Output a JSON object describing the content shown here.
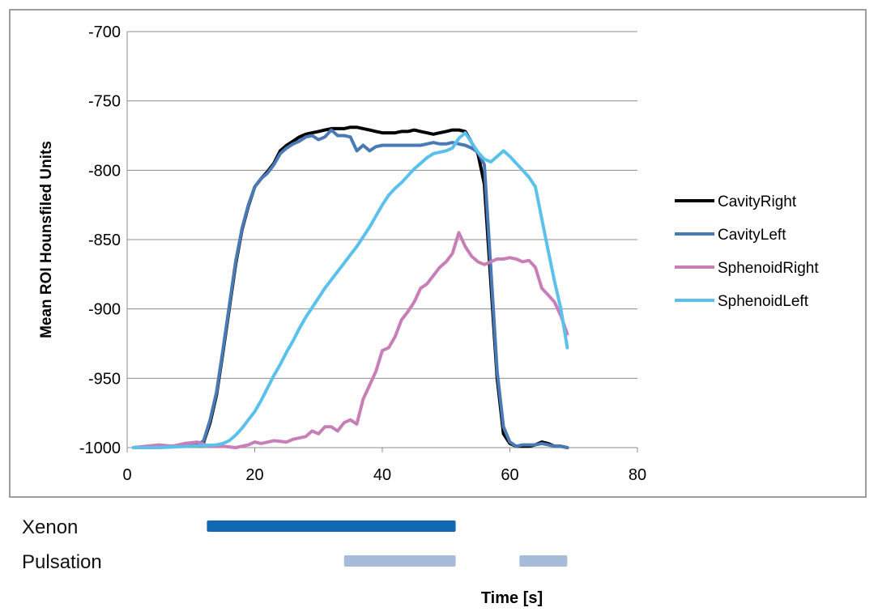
{
  "chart_data": {
    "type": "line",
    "title": "",
    "xlabel": "Time [s]",
    "ylabel": "Mean ROI Hounsfiled Units",
    "xlim": [
      0,
      80
    ],
    "ylim": [
      -1000,
      -700
    ],
    "xticks": [
      0,
      20,
      40,
      60,
      80
    ],
    "yticks": [
      -700,
      -750,
      -800,
      -850,
      -900,
      -950,
      -1000
    ],
    "grid": "horizontal",
    "legend_position": "right",
    "series": [
      {
        "name": "CavityRight",
        "color": "#000000",
        "x": [
          1,
          4,
          8,
          11,
          12,
          13,
          14,
          15,
          16,
          17,
          18,
          19,
          20,
          21,
          22,
          23,
          24,
          25,
          26,
          27,
          28,
          29,
          30,
          31,
          32,
          33,
          34,
          35,
          36,
          37,
          38,
          39,
          40,
          41,
          42,
          43,
          44,
          45,
          46,
          47,
          48,
          49,
          50,
          51,
          52,
          53,
          54,
          55,
          56,
          57,
          58,
          59,
          60,
          61,
          62,
          63,
          64,
          65,
          66,
          67,
          68,
          69
        ],
        "values": [
          -1000,
          -999,
          -999,
          -998,
          -996,
          -982,
          -962,
          -932,
          -900,
          -868,
          -843,
          -826,
          -812,
          -806,
          -801,
          -795,
          -786,
          -782,
          -779,
          -776,
          -774,
          -773,
          -772,
          -771,
          -770,
          -770,
          -770,
          -769,
          -769,
          -770,
          -771,
          -772,
          -773,
          -773,
          -773,
          -772,
          -772,
          -771,
          -772,
          -773,
          -774,
          -773,
          -772,
          -771,
          -771,
          -772,
          -780,
          -788,
          -810,
          -880,
          -950,
          -990,
          -997,
          -999,
          -999,
          -999,
          -998,
          -996,
          -997,
          -999,
          -999,
          -1000
        ]
      },
      {
        "name": "CavityLeft",
        "color": "#4A7AB5",
        "x": [
          1,
          4,
          8,
          11,
          12,
          13,
          14,
          15,
          16,
          17,
          18,
          19,
          20,
          21,
          22,
          23,
          24,
          25,
          26,
          27,
          28,
          29,
          30,
          31,
          32,
          33,
          34,
          35,
          36,
          37,
          38,
          39,
          40,
          41,
          42,
          43,
          44,
          45,
          46,
          47,
          48,
          49,
          50,
          51,
          52,
          53,
          54,
          55,
          56,
          57,
          58,
          59,
          60,
          61,
          62,
          63,
          64,
          65,
          66,
          67,
          68,
          69
        ],
        "values": [
          -1000,
          -999,
          -999,
          -998,
          -995,
          -980,
          -960,
          -930,
          -898,
          -866,
          -842,
          -825,
          -812,
          -806,
          -802,
          -796,
          -788,
          -784,
          -781,
          -779,
          -776,
          -775,
          -778,
          -776,
          -771,
          -775,
          -775,
          -776,
          -786,
          -782,
          -786,
          -783,
          -782,
          -782,
          -782,
          -782,
          -782,
          -782,
          -782,
          -781,
          -780,
          -781,
          -781,
          -780,
          -781,
          -782,
          -784,
          -787,
          -796,
          -870,
          -945,
          -985,
          -996,
          -999,
          -998,
          -998,
          -998,
          -997,
          -998,
          -999,
          -999,
          -1000
        ]
      },
      {
        "name": "SphenoidRight",
        "color": "#C87FB8",
        "x": [
          1,
          3,
          5,
          7,
          9,
          11,
          13,
          15,
          17,
          19,
          20,
          21,
          23,
          25,
          26,
          28,
          29,
          30,
          31,
          32,
          33,
          34,
          35,
          36,
          37,
          38,
          39,
          40,
          41,
          42,
          43,
          44,
          45,
          46,
          47,
          48,
          49,
          50,
          51,
          52,
          53,
          54,
          55,
          56,
          57,
          58,
          59,
          60,
          61,
          62,
          63,
          64,
          65,
          66,
          67,
          68,
          69
        ],
        "values": [
          -1000,
          -999,
          -998,
          -999,
          -997,
          -996,
          -999,
          -999,
          -1000,
          -998,
          -996,
          -997,
          -995,
          -996,
          -994,
          -992,
          -988,
          -990,
          -985,
          -985,
          -988,
          -982,
          -980,
          -983,
          -965,
          -955,
          -945,
          -930,
          -928,
          -920,
          -908,
          -902,
          -895,
          -885,
          -882,
          -876,
          -870,
          -866,
          -860,
          -845,
          -855,
          -862,
          -866,
          -868,
          -866,
          -864,
          -864,
          -863,
          -864,
          -866,
          -865,
          -870,
          -885,
          -890,
          -895,
          -905,
          -918
        ]
      },
      {
        "name": "SphenoidLeft",
        "color": "#5BC1EB",
        "x": [
          1,
          5,
          10,
          14,
          15,
          16,
          17,
          18,
          19,
          20,
          21,
          22,
          23,
          24,
          25,
          26,
          27,
          28,
          29,
          30,
          31,
          32,
          33,
          34,
          35,
          36,
          37,
          38,
          39,
          40,
          41,
          42,
          43,
          44,
          45,
          46,
          47,
          48,
          49,
          50,
          51,
          52,
          53,
          54,
          55,
          56,
          57,
          58,
          59,
          60,
          61,
          62,
          63,
          64,
          65,
          66,
          67,
          68,
          69
        ],
        "values": [
          -1000,
          -1000,
          -999,
          -998,
          -997,
          -995,
          -991,
          -986,
          -980,
          -974,
          -966,
          -957,
          -948,
          -940,
          -931,
          -923,
          -914,
          -906,
          -899,
          -892,
          -885,
          -879,
          -873,
          -867,
          -861,
          -855,
          -848,
          -841,
          -833,
          -825,
          -818,
          -813,
          -809,
          -804,
          -799,
          -795,
          -791,
          -788,
          -787,
          -786,
          -784,
          -777,
          -773,
          -780,
          -787,
          -792,
          -794,
          -790,
          -786,
          -790,
          -795,
          -800,
          -805,
          -812,
          -835,
          -858,
          -880,
          -900,
          -928
        ]
      }
    ],
    "timeline": [
      {
        "label": "Xenon",
        "color": "#1268B3",
        "segments": [
          [
            12.5,
            51.5
          ]
        ]
      },
      {
        "label": "Pulsation",
        "color": "#A7BCD8",
        "segments": [
          [
            34,
            51.5
          ],
          [
            61.5,
            69
          ]
        ]
      }
    ]
  }
}
